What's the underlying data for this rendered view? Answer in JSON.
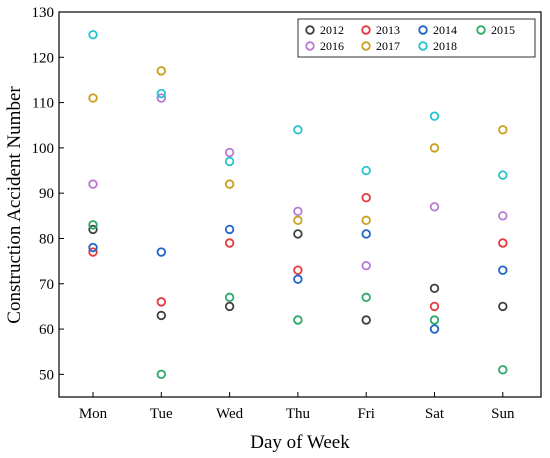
{
  "chart_data": {
    "type": "scatter",
    "xlabel": "Day of Week",
    "ylabel": "Construction Accident Number",
    "categories": [
      "Mon",
      "Tue",
      "Wed",
      "Thu",
      "Fri",
      "Sat",
      "Sun"
    ],
    "ylim": [
      45,
      130
    ],
    "yticks": [
      50,
      60,
      70,
      80,
      90,
      100,
      110,
      120,
      130
    ],
    "grid": false,
    "legend_position": "top-right",
    "marker": "open-circle",
    "series": [
      {
        "name": "2012",
        "color": "#404040",
        "values": [
          82,
          63,
          65,
          81,
          62,
          69,
          65
        ]
      },
      {
        "name": "2013",
        "color": "#e8383d",
        "values": [
          77,
          66,
          79,
          73,
          89,
          65,
          79
        ]
      },
      {
        "name": "2014",
        "color": "#1f64c8",
        "values": [
          78,
          77,
          82,
          71,
          81,
          60,
          73
        ]
      },
      {
        "name": "2015",
        "color": "#2ca868",
        "values": [
          83,
          50,
          67,
          62,
          67,
          62,
          51
        ]
      },
      {
        "name": "2016",
        "color": "#b77ad8",
        "values": [
          92,
          111,
          99,
          86,
          74,
          87,
          85
        ]
      },
      {
        "name": "2017",
        "color": "#caa01e",
        "values": [
          111,
          117,
          92,
          84,
          84,
          100,
          104
        ]
      },
      {
        "name": "2018",
        "color": "#27c4cf",
        "values": [
          125,
          112,
          97,
          104,
          95,
          107,
          94
        ]
      }
    ]
  }
}
